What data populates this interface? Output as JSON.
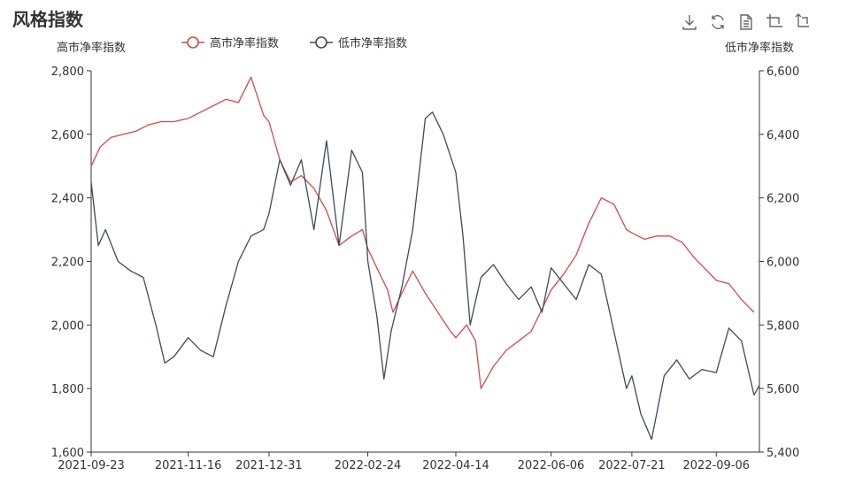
{
  "page": {
    "title": "风格指数"
  },
  "toolbox": [
    {
      "name": "download-icon"
    },
    {
      "name": "refresh-icon"
    },
    {
      "name": "data-view-icon"
    },
    {
      "name": "zoom-icon"
    },
    {
      "name": "zoom-reset-icon"
    }
  ],
  "chart_data": {
    "type": "line",
    "title": "风格指数",
    "x_ticks": [
      "2021-09-23",
      "2021-11-16",
      "2021-12-31",
      "2022-02-24",
      "2022-04-14",
      "2022-06-06",
      "2022-07-21",
      "2022-09-06"
    ],
    "x_range": [
      "2021-09-23",
      "2022-09-30"
    ],
    "y_left": {
      "label": "高市净率指数",
      "min": 1600,
      "max": 2800,
      "ticks": [
        1600,
        1800,
        2000,
        2200,
        2400,
        2600,
        2800
      ]
    },
    "y_right": {
      "label": "低市净率指数",
      "min": 5400,
      "max": 6600,
      "ticks": [
        5400,
        5600,
        5800,
        6000,
        6200,
        6400,
        6600
      ]
    },
    "grid": false,
    "legend_position": "top-center",
    "series": [
      {
        "name": "高市净率指数",
        "axis": "left",
        "color": "#d14a4a",
        "points": [
          [
            "2021-09-23",
            2500
          ],
          [
            "2021-09-28",
            2560
          ],
          [
            "2021-10-04",
            2590
          ],
          [
            "2021-10-11",
            2600
          ],
          [
            "2021-10-18",
            2610
          ],
          [
            "2021-10-25",
            2630
          ],
          [
            "2021-11-01",
            2640
          ],
          [
            "2021-11-08",
            2640
          ],
          [
            "2021-11-16",
            2650
          ],
          [
            "2021-11-23",
            2670
          ],
          [
            "2021-11-30",
            2690
          ],
          [
            "2021-12-07",
            2710
          ],
          [
            "2021-12-14",
            2700
          ],
          [
            "2021-12-21",
            2780
          ],
          [
            "2021-12-28",
            2660
          ],
          [
            "2021-12-31",
            2640
          ],
          [
            "2022-01-06",
            2520
          ],
          [
            "2022-01-12",
            2450
          ],
          [
            "2022-01-18",
            2470
          ],
          [
            "2022-01-25",
            2430
          ],
          [
            "2022-02-01",
            2360
          ],
          [
            "2022-02-08",
            2250
          ],
          [
            "2022-02-15",
            2280
          ],
          [
            "2022-02-21",
            2300
          ],
          [
            "2022-02-24",
            2240
          ],
          [
            "2022-03-01",
            2180
          ],
          [
            "2022-03-07",
            2110
          ],
          [
            "2022-03-10",
            2040
          ],
          [
            "2022-03-15",
            2100
          ],
          [
            "2022-03-21",
            2170
          ],
          [
            "2022-03-28",
            2100
          ],
          [
            "2022-04-04",
            2040
          ],
          [
            "2022-04-11",
            1980
          ],
          [
            "2022-04-14",
            1960
          ],
          [
            "2022-04-20",
            2000
          ],
          [
            "2022-04-25",
            1950
          ],
          [
            "2022-04-28",
            1800
          ],
          [
            "2022-05-05",
            1870
          ],
          [
            "2022-05-12",
            1920
          ],
          [
            "2022-05-19",
            1950
          ],
          [
            "2022-05-26",
            1980
          ],
          [
            "2022-06-01",
            2050
          ],
          [
            "2022-06-06",
            2110
          ],
          [
            "2022-06-13",
            2160
          ],
          [
            "2022-06-20",
            2220
          ],
          [
            "2022-06-27",
            2320
          ],
          [
            "2022-07-04",
            2400
          ],
          [
            "2022-07-11",
            2380
          ],
          [
            "2022-07-18",
            2300
          ],
          [
            "2022-07-21",
            2290
          ],
          [
            "2022-07-28",
            2270
          ],
          [
            "2022-08-04",
            2280
          ],
          [
            "2022-08-11",
            2280
          ],
          [
            "2022-08-18",
            2260
          ],
          [
            "2022-08-25",
            2210
          ],
          [
            "2022-09-01",
            2170
          ],
          [
            "2022-09-06",
            2140
          ],
          [
            "2022-09-13",
            2130
          ],
          [
            "2022-09-20",
            2080
          ],
          [
            "2022-09-27",
            2040
          ]
        ]
      },
      {
        "name": "低市净率指数",
        "axis": "right",
        "color": "#3c4b5a",
        "points": [
          [
            "2021-09-23",
            6250
          ],
          [
            "2021-09-27",
            6050
          ],
          [
            "2021-10-01",
            6100
          ],
          [
            "2021-10-08",
            6000
          ],
          [
            "2021-10-15",
            5970
          ],
          [
            "2021-10-22",
            5950
          ],
          [
            "2021-10-29",
            5800
          ],
          [
            "2021-11-03",
            5680
          ],
          [
            "2021-11-08",
            5700
          ],
          [
            "2021-11-16",
            5760
          ],
          [
            "2021-11-23",
            5720
          ],
          [
            "2021-11-30",
            5700
          ],
          [
            "2021-12-07",
            5860
          ],
          [
            "2021-12-14",
            6000
          ],
          [
            "2021-12-21",
            6080
          ],
          [
            "2021-12-28",
            6100
          ],
          [
            "2021-12-31",
            6150
          ],
          [
            "2022-01-06",
            6320
          ],
          [
            "2022-01-12",
            6240
          ],
          [
            "2022-01-18",
            6320
          ],
          [
            "2022-01-25",
            6100
          ],
          [
            "2022-02-01",
            6380
          ],
          [
            "2022-02-08",
            6050
          ],
          [
            "2022-02-15",
            6350
          ],
          [
            "2022-02-21",
            6280
          ],
          [
            "2022-02-24",
            6000
          ],
          [
            "2022-03-01",
            5830
          ],
          [
            "2022-03-05",
            5630
          ],
          [
            "2022-03-09",
            5780
          ],
          [
            "2022-03-15",
            5920
          ],
          [
            "2022-03-21",
            6100
          ],
          [
            "2022-03-28",
            6450
          ],
          [
            "2022-04-01",
            6470
          ],
          [
            "2022-04-07",
            6400
          ],
          [
            "2022-04-14",
            6280
          ],
          [
            "2022-04-18",
            6080
          ],
          [
            "2022-04-22",
            5800
          ],
          [
            "2022-04-28",
            5950
          ],
          [
            "2022-05-05",
            5990
          ],
          [
            "2022-05-12",
            5930
          ],
          [
            "2022-05-19",
            5880
          ],
          [
            "2022-05-26",
            5920
          ],
          [
            "2022-06-01",
            5840
          ],
          [
            "2022-06-06",
            5980
          ],
          [
            "2022-06-13",
            5930
          ],
          [
            "2022-06-20",
            5880
          ],
          [
            "2022-06-27",
            5990
          ],
          [
            "2022-07-04",
            5960
          ],
          [
            "2022-07-11",
            5780
          ],
          [
            "2022-07-18",
            5600
          ],
          [
            "2022-07-21",
            5640
          ],
          [
            "2022-07-26",
            5520
          ],
          [
            "2022-08-01",
            5440
          ],
          [
            "2022-08-08",
            5640
          ],
          [
            "2022-08-15",
            5690
          ],
          [
            "2022-08-22",
            5630
          ],
          [
            "2022-08-29",
            5660
          ],
          [
            "2022-09-06",
            5650
          ],
          [
            "2022-09-13",
            5790
          ],
          [
            "2022-09-20",
            5750
          ],
          [
            "2022-09-27",
            5580
          ],
          [
            "2022-09-30",
            5610
          ]
        ]
      }
    ]
  }
}
